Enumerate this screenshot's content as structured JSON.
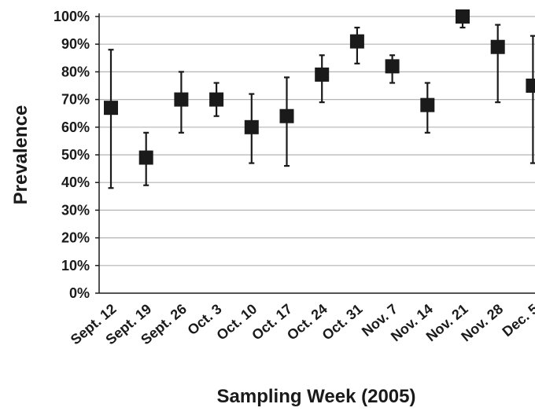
{
  "chart_data": {
    "type": "scatter",
    "xlabel": "Sampling Week (2005)",
    "ylabel": "Prevalence",
    "ylim": [
      0,
      100
    ],
    "y_ticks": [
      "0%",
      "10%",
      "20%",
      "30%",
      "40%",
      "50%",
      "60%",
      "70%",
      "80%",
      "90%",
      "100%"
    ],
    "grid": true,
    "categories": [
      "Sept. 12",
      "Sept. 19",
      "Sept. 26",
      "Oct. 3",
      "Oct. 10",
      "Oct. 17",
      "Oct. 24",
      "Oct. 31",
      "Nov. 7",
      "Nov. 14",
      "Nov. 21",
      "Nov. 28",
      "Dec. 5"
    ],
    "values": [
      67,
      49,
      70,
      70,
      60,
      64,
      79,
      91,
      82,
      68,
      100,
      89,
      75
    ],
    "error_low": [
      38,
      39,
      58,
      64,
      47,
      46,
      69,
      83,
      76,
      58,
      96,
      69,
      47
    ],
    "error_high": [
      88,
      58,
      80,
      76,
      72,
      78,
      86,
      96,
      86,
      76,
      100,
      97,
      93
    ],
    "marker": "square",
    "colors": {
      "marker": "#1a1a1a",
      "grid": "#b4b4b4",
      "axis": "#1a1a1a"
    }
  }
}
